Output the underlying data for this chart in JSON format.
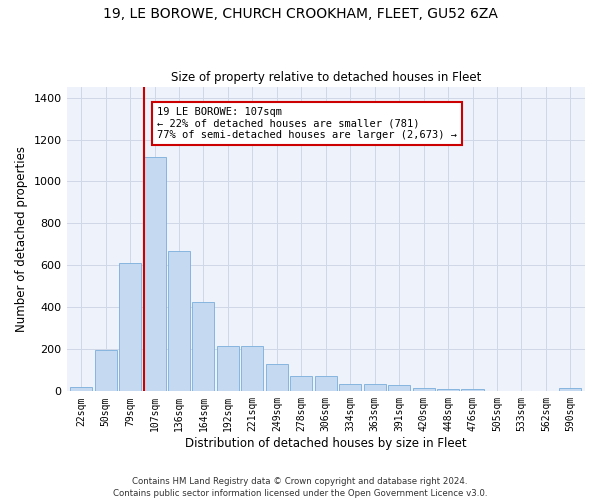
{
  "title": "19, LE BOROWE, CHURCH CROOKHAM, FLEET, GU52 6ZA",
  "subtitle": "Size of property relative to detached houses in Fleet",
  "xlabel": "Distribution of detached houses by size in Fleet",
  "ylabel": "Number of detached properties",
  "bar_color": "#c5d9f0",
  "bar_edge_color": "#7aaedb",
  "grid_color": "#d0d8e8",
  "background_color": "#eef2fa",
  "marker_line_color": "#cc0000",
  "marker_value": 107,
  "annotation_line1": "19 LE BOROWE: 107sqm",
  "annotation_line2": "← 22% of detached houses are smaller (781)",
  "annotation_line3": "77% of semi-detached houses are larger (2,673) →",
  "annotation_box_color": "#ffffff",
  "annotation_box_edge_color": "#cc0000",
  "categories": [
    "22sqm",
    "50sqm",
    "79sqm",
    "107sqm",
    "136sqm",
    "164sqm",
    "192sqm",
    "221sqm",
    "249sqm",
    "278sqm",
    "306sqm",
    "334sqm",
    "363sqm",
    "391sqm",
    "420sqm",
    "448sqm",
    "476sqm",
    "505sqm",
    "533sqm",
    "562sqm",
    "590sqm"
  ],
  "values": [
    20,
    195,
    610,
    1115,
    670,
    425,
    215,
    215,
    130,
    75,
    75,
    35,
    35,
    30,
    15,
    12,
    10,
    0,
    0,
    0,
    15
  ],
  "ylim": [
    0,
    1450
  ],
  "yticks": [
    0,
    200,
    400,
    600,
    800,
    1000,
    1200,
    1400
  ],
  "footer_line1": "Contains HM Land Registry data © Crown copyright and database right 2024.",
  "footer_line2": "Contains public sector information licensed under the Open Government Licence v3.0.",
  "figsize": [
    6.0,
    5.0
  ],
  "dpi": 100
}
